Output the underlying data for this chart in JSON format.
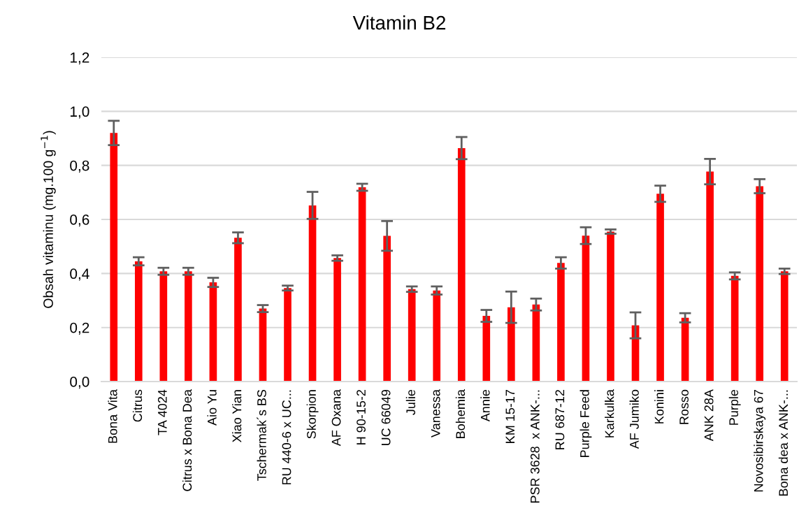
{
  "chart_data": {
    "type": "bar",
    "title": "Vitamin B2",
    "ylabel": "Obsah vitaminu (mg.100 g$^{−1}$)",
    "categories": [
      "Bona Vita",
      "Citrus",
      "TA 4024",
      "Citrus x Bona Dea",
      "Aio Yu",
      "Xiao Yian",
      "Tschermak´s BS",
      "RU 440-6 x UC...",
      "Skorpion",
      "AF Oxana",
      "H 90-15-2",
      "UC 66049",
      "Julie",
      "Vanessa",
      "Bohemia",
      "Annie",
      "KM 15-17",
      "PSR 3628  x ANK-...",
      "RU 687-12",
      "Purple Feed",
      "Karkulka",
      "AF Jumiko",
      "Konini",
      "Rosso",
      "ANK 28A",
      "Purple",
      "Novosibirskaya 67",
      "Bona dea x ANK-..."
    ],
    "values": [
      0.92,
      0.445,
      0.408,
      0.408,
      0.367,
      0.532,
      0.27,
      0.346,
      0.652,
      0.457,
      0.719,
      0.539,
      0.342,
      0.337,
      0.864,
      0.243,
      0.275,
      0.285,
      0.439,
      0.54,
      0.555,
      0.208,
      0.695,
      0.236,
      0.777,
      0.391,
      0.723,
      0.408
    ],
    "errors": [
      0.045,
      0.015,
      0.013,
      0.013,
      0.017,
      0.02,
      0.013,
      0.009,
      0.05,
      0.01,
      0.013,
      0.055,
      0.01,
      0.015,
      0.041,
      0.022,
      0.058,
      0.022,
      0.021,
      0.031,
      0.008,
      0.048,
      0.03,
      0.017,
      0.047,
      0.013,
      0.026,
      0.01
    ],
    "color": "#ff0000",
    "ylim": [
      0,
      1.2
    ],
    "yticks": [
      {
        "value": 0,
        "label": "0,0"
      },
      {
        "value": 0.2,
        "label": "0,2"
      },
      {
        "value": 0.4,
        "label": "0,4"
      },
      {
        "value": 0.6,
        "label": "0,6"
      },
      {
        "value": 0.8,
        "label": "0,8"
      },
      {
        "value": 1.0,
        "label": "1,0"
      },
      {
        "value": 1.2,
        "label": "1,2"
      }
    ],
    "grid": "y"
  }
}
